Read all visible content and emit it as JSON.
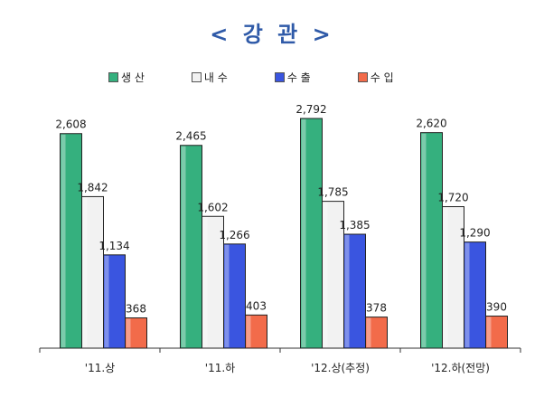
{
  "title": "< 강 관 >",
  "colors": {
    "생 산": "#35b07e",
    "내 수": "#f2f2f2",
    "수 출": "#3a55e0",
    "수 입": "#f26b4a"
  },
  "chart_data": {
    "type": "bar",
    "title": "< 강 관 >",
    "categories": [
      "'11.상",
      "'11.하",
      "'12.상(추정)",
      "'12.하(전망)"
    ],
    "series": [
      {
        "name": "생 산",
        "values": [
          2608,
          2465,
          2792,
          2620
        ]
      },
      {
        "name": "내 수",
        "values": [
          1842,
          1602,
          1785,
          1720
        ]
      },
      {
        "name": "수 출",
        "values": [
          1134,
          1266,
          1385,
          1290
        ]
      },
      {
        "name": "수 입",
        "values": [
          368,
          403,
          378,
          390
        ]
      }
    ],
    "value_labels": [
      [
        "2,608",
        "2,465",
        "2,792",
        "2,620"
      ],
      [
        "1,842",
        "1,602",
        "1,785",
        "1,720"
      ],
      [
        "1,134",
        "1,266",
        "1,385",
        "1,290"
      ],
      [
        "368",
        "403",
        "378",
        "390"
      ]
    ],
    "xlabel": "",
    "ylabel": "",
    "ylim": [
      0,
      2792
    ],
    "grid": false,
    "legend": "top"
  }
}
